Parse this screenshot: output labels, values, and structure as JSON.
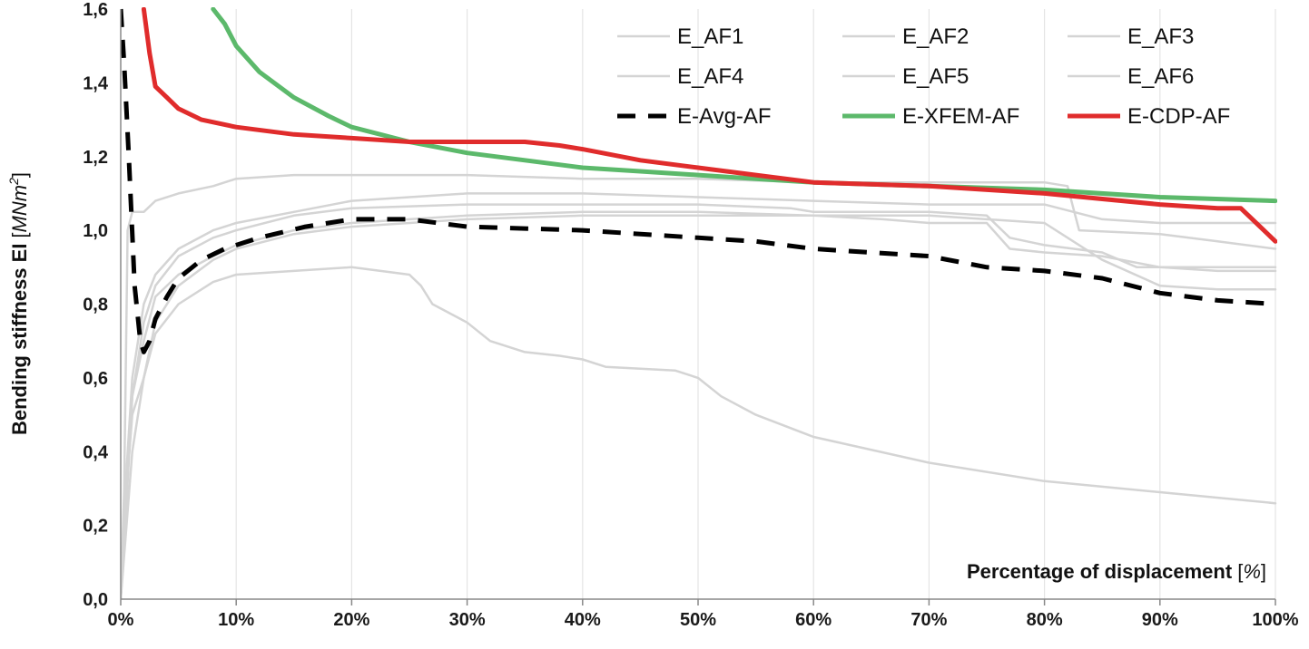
{
  "chart_data": {
    "type": "line",
    "title": "",
    "xlabel": "Percentage of displacement",
    "xlabel_unit": "%",
    "ylabel": "Bending stiffness EI",
    "ylabel_unit_prefix": "MNm",
    "ylabel_unit_exp": "2",
    "xlim": [
      0,
      100
    ],
    "ylim": [
      0,
      1.6
    ],
    "xticks": [
      0,
      10,
      20,
      30,
      40,
      50,
      60,
      70,
      80,
      90,
      100
    ],
    "xtick_labels": [
      "0%",
      "10%",
      "20%",
      "30%",
      "40%",
      "50%",
      "60%",
      "70%",
      "80%",
      "90%",
      "100%"
    ],
    "yticks": [
      0,
      0.2,
      0.4,
      0.6,
      0.8,
      1.0,
      1.2,
      1.4,
      1.6
    ],
    "ytick_labels": [
      "0,0",
      "0,2",
      "0,4",
      "0,6",
      "0,8",
      "1,0",
      "1,2",
      "1,4",
      "1,6"
    ],
    "grid": "vertical",
    "legend_position": "top-right",
    "series": [
      {
        "name": "E_AF1",
        "color": "#d4d4d4",
        "style": "solid",
        "width": 2.5,
        "points": [
          [
            0,
            0
          ],
          [
            0.3,
            0.3
          ],
          [
            0.6,
            1.0
          ],
          [
            1,
            1.05
          ],
          [
            2,
            1.05
          ],
          [
            3,
            1.08
          ],
          [
            5,
            1.1
          ],
          [
            8,
            1.12
          ],
          [
            10,
            1.14
          ],
          [
            15,
            1.15
          ],
          [
            20,
            1.15
          ],
          [
            30,
            1.15
          ],
          [
            40,
            1.14
          ],
          [
            50,
            1.14
          ],
          [
            60,
            1.13
          ],
          [
            70,
            1.13
          ],
          [
            80,
            1.13
          ],
          [
            82,
            1.12
          ],
          [
            83,
            1.0
          ],
          [
            90,
            0.99
          ],
          [
            95,
            0.97
          ],
          [
            100,
            0.95
          ]
        ]
      },
      {
        "name": "E_AF2",
        "color": "#d4d4d4",
        "style": "solid",
        "width": 2.5,
        "points": [
          [
            0,
            0
          ],
          [
            0.4,
            0.2
          ],
          [
            1,
            0.55
          ],
          [
            2,
            0.75
          ],
          [
            3,
            0.85
          ],
          [
            5,
            0.93
          ],
          [
            8,
            0.98
          ],
          [
            10,
            1.0
          ],
          [
            15,
            1.04
          ],
          [
            20,
            1.06
          ],
          [
            30,
            1.07
          ],
          [
            40,
            1.07
          ],
          [
            50,
            1.07
          ],
          [
            58,
            1.06
          ],
          [
            60,
            1.05
          ],
          [
            70,
            1.05
          ],
          [
            75,
            1.04
          ],
          [
            77,
            0.98
          ],
          [
            80,
            0.96
          ],
          [
            85,
            0.94
          ],
          [
            88,
            0.9
          ],
          [
            95,
            0.9
          ],
          [
            100,
            0.9
          ]
        ]
      },
      {
        "name": "E_AF3",
        "color": "#d4d4d4",
        "style": "solid",
        "width": 2.5,
        "points": [
          [
            0,
            0
          ],
          [
            0.5,
            0.35
          ],
          [
            1,
            0.6
          ],
          [
            2,
            0.8
          ],
          [
            3,
            0.88
          ],
          [
            5,
            0.95
          ],
          [
            8,
            1.0
          ],
          [
            10,
            1.02
          ],
          [
            15,
            1.05
          ],
          [
            20,
            1.08
          ],
          [
            30,
            1.1
          ],
          [
            40,
            1.1
          ],
          [
            50,
            1.09
          ],
          [
            60,
            1.08
          ],
          [
            70,
            1.07
          ],
          [
            80,
            1.07
          ],
          [
            85,
            1.03
          ],
          [
            90,
            1.02
          ],
          [
            100,
            1.02
          ]
        ]
      },
      {
        "name": "E_AF4",
        "color": "#d4d4d4",
        "style": "solid",
        "width": 2.5,
        "points": [
          [
            0,
            0
          ],
          [
            0.5,
            0.3
          ],
          [
            1,
            0.5
          ],
          [
            2,
            0.6
          ],
          [
            3,
            0.75
          ],
          [
            5,
            0.85
          ],
          [
            8,
            0.92
          ],
          [
            10,
            0.95
          ],
          [
            15,
            0.99
          ],
          [
            20,
            1.01
          ],
          [
            30,
            1.03
          ],
          [
            40,
            1.04
          ],
          [
            50,
            1.04
          ],
          [
            60,
            1.04
          ],
          [
            66,
            1.03
          ],
          [
            70,
            1.02
          ],
          [
            75,
            1.02
          ],
          [
            77,
            0.95
          ],
          [
            80,
            0.94
          ],
          [
            85,
            0.93
          ],
          [
            90,
            0.9
          ],
          [
            95,
            0.89
          ],
          [
            100,
            0.89
          ]
        ]
      },
      {
        "name": "E_AF5",
        "color": "#d4d4d4",
        "style": "solid",
        "width": 2.5,
        "points": [
          [
            0,
            0
          ],
          [
            0.5,
            0.3
          ],
          [
            1,
            0.55
          ],
          [
            2,
            0.7
          ],
          [
            3,
            0.82
          ],
          [
            5,
            0.88
          ],
          [
            8,
            0.93
          ],
          [
            10,
            0.96
          ],
          [
            15,
            1.0
          ],
          [
            20,
            1.02
          ],
          [
            30,
            1.04
          ],
          [
            40,
            1.05
          ],
          [
            50,
            1.05
          ],
          [
            60,
            1.04
          ],
          [
            70,
            1.04
          ],
          [
            75,
            1.03
          ],
          [
            80,
            1.02
          ],
          [
            85,
            0.92
          ],
          [
            90,
            0.85
          ],
          [
            95,
            0.84
          ],
          [
            100,
            0.84
          ]
        ]
      },
      {
        "name": "E_AF6",
        "color": "#d4d4d4",
        "style": "solid",
        "width": 2.5,
        "points": [
          [
            0,
            0
          ],
          [
            0.5,
            0.2
          ],
          [
            1,
            0.4
          ],
          [
            2,
            0.6
          ],
          [
            3,
            0.72
          ],
          [
            5,
            0.8
          ],
          [
            8,
            0.86
          ],
          [
            10,
            0.88
          ],
          [
            15,
            0.89
          ],
          [
            20,
            0.9
          ],
          [
            25,
            0.88
          ],
          [
            26,
            0.85
          ],
          [
            27,
            0.8
          ],
          [
            30,
            0.75
          ],
          [
            32,
            0.7
          ],
          [
            35,
            0.67
          ],
          [
            38,
            0.66
          ],
          [
            40,
            0.65
          ],
          [
            42,
            0.63
          ],
          [
            48,
            0.62
          ],
          [
            50,
            0.6
          ],
          [
            52,
            0.55
          ],
          [
            55,
            0.5
          ],
          [
            60,
            0.44
          ],
          [
            70,
            0.37
          ],
          [
            80,
            0.32
          ],
          [
            90,
            0.29
          ],
          [
            100,
            0.26
          ]
        ]
      },
      {
        "name": "E-Avg-AF",
        "color": "#000000",
        "style": "dashed",
        "width": 5,
        "points": [
          [
            0,
            1.6
          ],
          [
            0.3,
            1.45
          ],
          [
            0.7,
            1.2
          ],
          [
            1.2,
            0.85
          ],
          [
            1.7,
            0.7
          ],
          [
            2,
            0.67
          ],
          [
            2.5,
            0.7
          ],
          [
            3,
            0.76
          ],
          [
            4,
            0.82
          ],
          [
            5,
            0.87
          ],
          [
            7,
            0.92
          ],
          [
            9,
            0.95
          ],
          [
            12,
            0.98
          ],
          [
            16,
            1.01
          ],
          [
            20,
            1.03
          ],
          [
            25,
            1.03
          ],
          [
            30,
            1.01
          ],
          [
            40,
            1.0
          ],
          [
            50,
            0.98
          ],
          [
            55,
            0.97
          ],
          [
            60,
            0.95
          ],
          [
            70,
            0.93
          ],
          [
            75,
            0.9
          ],
          [
            80,
            0.89
          ],
          [
            85,
            0.87
          ],
          [
            90,
            0.83
          ],
          [
            95,
            0.81
          ],
          [
            100,
            0.8
          ]
        ]
      },
      {
        "name": "E-XFEM-AF",
        "color": "#5cb96b",
        "style": "solid",
        "width": 5,
        "points": [
          [
            8,
            1.6
          ],
          [
            9,
            1.56
          ],
          [
            10,
            1.5
          ],
          [
            12,
            1.43
          ],
          [
            15,
            1.36
          ],
          [
            18,
            1.31
          ],
          [
            20,
            1.28
          ],
          [
            25,
            1.24
          ],
          [
            30,
            1.21
          ],
          [
            35,
            1.19
          ],
          [
            40,
            1.17
          ],
          [
            45,
            1.16
          ],
          [
            50,
            1.15
          ],
          [
            55,
            1.14
          ],
          [
            60,
            1.13
          ],
          [
            70,
            1.12
          ],
          [
            80,
            1.11
          ],
          [
            90,
            1.09
          ],
          [
            100,
            1.08
          ]
        ]
      },
      {
        "name": "E-CDP-AF",
        "color": "#e02c2c",
        "style": "solid",
        "width": 5,
        "points": [
          [
            2,
            1.6
          ],
          [
            2.5,
            1.48
          ],
          [
            3,
            1.39
          ],
          [
            4,
            1.36
          ],
          [
            5,
            1.33
          ],
          [
            7,
            1.3
          ],
          [
            10,
            1.28
          ],
          [
            15,
            1.26
          ],
          [
            20,
            1.25
          ],
          [
            25,
            1.24
          ],
          [
            30,
            1.24
          ],
          [
            35,
            1.24
          ],
          [
            38,
            1.23
          ],
          [
            40,
            1.22
          ],
          [
            45,
            1.19
          ],
          [
            50,
            1.17
          ],
          [
            55,
            1.15
          ],
          [
            60,
            1.13
          ],
          [
            70,
            1.12
          ],
          [
            80,
            1.1
          ],
          [
            90,
            1.07
          ],
          [
            95,
            1.06
          ],
          [
            97,
            1.06
          ],
          [
            99,
            1.0
          ],
          [
            100,
            0.97
          ]
        ]
      }
    ]
  }
}
